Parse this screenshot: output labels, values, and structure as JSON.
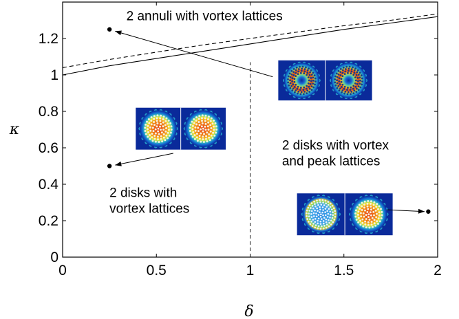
{
  "chart_data": {
    "type": "line",
    "title": "",
    "xlabel": "δ",
    "ylabel": "κ",
    "xlim": [
      0,
      2
    ],
    "ylim": [
      0,
      1.4
    ],
    "grid": false,
    "x_ticks": [
      {
        "value": 0,
        "label": "0"
      },
      {
        "value": 0.5,
        "label": "0.5"
      },
      {
        "value": 1,
        "label": "1"
      },
      {
        "value": 1.5,
        "label": "1.5"
      },
      {
        "value": 2,
        "label": "2"
      }
    ],
    "y_ticks": [
      {
        "value": 0,
        "label": "0"
      },
      {
        "value": 0.2,
        "label": "0.2"
      },
      {
        "value": 0.4,
        "label": "0.4"
      },
      {
        "value": 0.6,
        "label": "0.6"
      },
      {
        "value": 0.8,
        "label": "0.8"
      },
      {
        "value": 1,
        "label": "1"
      },
      {
        "value": 1.2,
        "label": "1.2"
      }
    ],
    "series": [
      {
        "style": "solid",
        "x": [
          0,
          0.25,
          0.5,
          0.75,
          1,
          1.25,
          1.5,
          1.75,
          2
        ],
        "y": [
          1.0,
          1.05,
          1.09,
          1.13,
          1.17,
          1.21,
          1.25,
          1.285,
          1.32
        ]
      },
      {
        "style": "dashed",
        "x": [
          0,
          0.25,
          0.5,
          0.75,
          1,
          1.25,
          1.5,
          1.75,
          2
        ],
        "y": [
          1.04,
          1.085,
          1.125,
          1.165,
          1.2,
          1.235,
          1.27,
          1.3,
          1.335
        ]
      }
    ],
    "vertical_dashed_line": {
      "x": 1,
      "y_range": [
        0,
        1.07
      ]
    },
    "points": [
      {
        "x": 0.25,
        "y": 1.25
      },
      {
        "x": 0.25,
        "y": 0.5
      },
      {
        "x": 1.95,
        "y": 0.25
      }
    ],
    "annotations": [
      {
        "lines": [
          "2 annuli with vortex lattices"
        ],
        "x": 0.34,
        "y": 1.3
      },
      {
        "lines": [
          "2 disks with",
          "vortex lattices"
        ],
        "x": 0.25,
        "y": 0.33
      },
      {
        "lines": [
          "2 disks with vortex",
          "and peak lattices"
        ],
        "x": 1.17,
        "y": 0.59
      }
    ],
    "arrows": [
      {
        "from": {
          "x": 1.12,
          "y": 0.99
        },
        "to": {
          "x": 0.28,
          "y": 1.24
        }
      },
      {
        "from": {
          "x": 0.59,
          "y": 0.57
        },
        "to": {
          "x": 0.28,
          "y": 0.505
        }
      },
      {
        "from": {
          "x": 1.73,
          "y": 0.26
        },
        "to": {
          "x": 1.93,
          "y": 0.25
        }
      }
    ],
    "insets": [
      {
        "pattern": "annulus",
        "x": [
          1.15,
          1.65
        ],
        "y": [
          0.86,
          1.08
        ]
      },
      {
        "pattern": "disk",
        "x": [
          0.39,
          0.87
        ],
        "y": [
          0.59,
          0.82
        ]
      },
      {
        "pattern": "disk-peak",
        "x": [
          1.25,
          1.76
        ],
        "y": [
          0.12,
          0.35
        ]
      }
    ]
  }
}
